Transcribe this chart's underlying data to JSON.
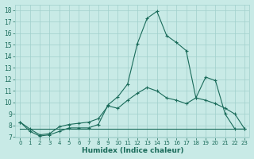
{
  "xlabel": "Humidex (Indice chaleur)",
  "background_color": "#c8eae6",
  "grid_color": "#a0d0cc",
  "line_color": "#1a6b5a",
  "xlim": [
    -0.5,
    23.5
  ],
  "ylim": [
    7,
    18.5
  ],
  "xticks": [
    0,
    1,
    2,
    3,
    4,
    5,
    6,
    7,
    8,
    9,
    10,
    11,
    12,
    13,
    14,
    15,
    16,
    17,
    18,
    19,
    20,
    21,
    22,
    23
  ],
  "yticks": [
    7,
    8,
    9,
    10,
    11,
    12,
    13,
    14,
    15,
    16,
    17,
    18
  ],
  "line1_x": [
    0,
    1,
    2,
    3,
    4,
    5,
    6,
    7,
    8,
    9,
    10,
    11,
    12,
    13,
    14,
    15,
    16,
    17,
    18,
    19,
    20,
    21,
    22,
    23
  ],
  "line1_y": [
    8.3,
    7.5,
    7.1,
    7.2,
    7.5,
    7.8,
    7.8,
    7.8,
    8.1,
    9.8,
    10.5,
    11.6,
    15.1,
    17.3,
    17.9,
    15.8,
    15.2,
    14.5,
    10.4,
    12.2,
    11.9,
    9.0,
    7.7,
    7.7
  ],
  "line2_x": [
    0,
    1,
    2,
    3,
    4,
    5,
    6,
    7,
    8,
    9,
    10,
    11,
    12,
    13,
    14,
    15,
    16,
    17,
    18,
    19,
    20,
    21,
    22,
    23
  ],
  "line2_y": [
    8.3,
    7.7,
    7.2,
    7.3,
    7.9,
    8.1,
    8.2,
    8.3,
    8.6,
    9.7,
    9.5,
    10.2,
    10.8,
    11.3,
    11.0,
    10.4,
    10.2,
    9.9,
    10.4,
    10.2,
    9.9,
    9.5,
    9.0,
    7.7
  ],
  "line3_x": [
    0,
    1,
    2,
    3,
    4,
    5,
    6,
    7,
    8,
    9,
    10,
    11,
    12,
    13,
    14,
    15,
    16,
    17,
    18,
    19,
    20,
    21,
    22,
    23
  ],
  "line3_y": [
    7.7,
    7.7,
    7.7,
    7.7,
    7.7,
    7.7,
    7.7,
    7.7,
    7.7,
    7.7,
    7.7,
    7.7,
    7.7,
    7.7,
    7.7,
    7.7,
    7.7,
    7.7,
    7.7,
    7.7,
    7.7,
    7.7,
    7.7,
    7.7
  ],
  "xlabel_fontsize": 6.5,
  "tick_fontsize": 5.5
}
